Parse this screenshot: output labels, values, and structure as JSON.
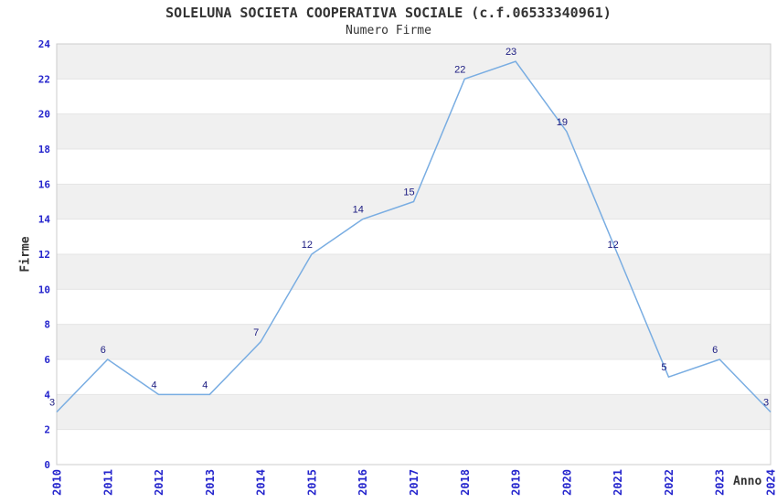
{
  "chart_data": {
    "type": "line",
    "title": "SOLELUNA SOCIETA COOPERATIVA SOCIALE (c.f.06533340961)",
    "subtitle": "Numero Firme",
    "xlabel": "Anno",
    "ylabel": "Firme",
    "categories": [
      "2010",
      "2011",
      "2012",
      "2013",
      "2014",
      "2015",
      "2016",
      "2017",
      "2018",
      "2019",
      "2020",
      "2021",
      "2022",
      "2023",
      "2024"
    ],
    "values": [
      3,
      6,
      4,
      4,
      7,
      12,
      14,
      15,
      22,
      23,
      19,
      12,
      5,
      6,
      3
    ],
    "ylim": [
      0,
      24
    ],
    "ytick_step": 2,
    "grid": "horizontal-bands-alternating",
    "legend": "none",
    "point_labels_visible": true,
    "colors": {
      "line": "#79ADE2",
      "tick_label": "#2525CD",
      "value_label": "#1A1A80",
      "title": "#333333",
      "band": "#F0F0F0",
      "gridline": "#E4E4E4",
      "plot_border": "#CCCCCC",
      "background": "#FFFFFF"
    }
  }
}
